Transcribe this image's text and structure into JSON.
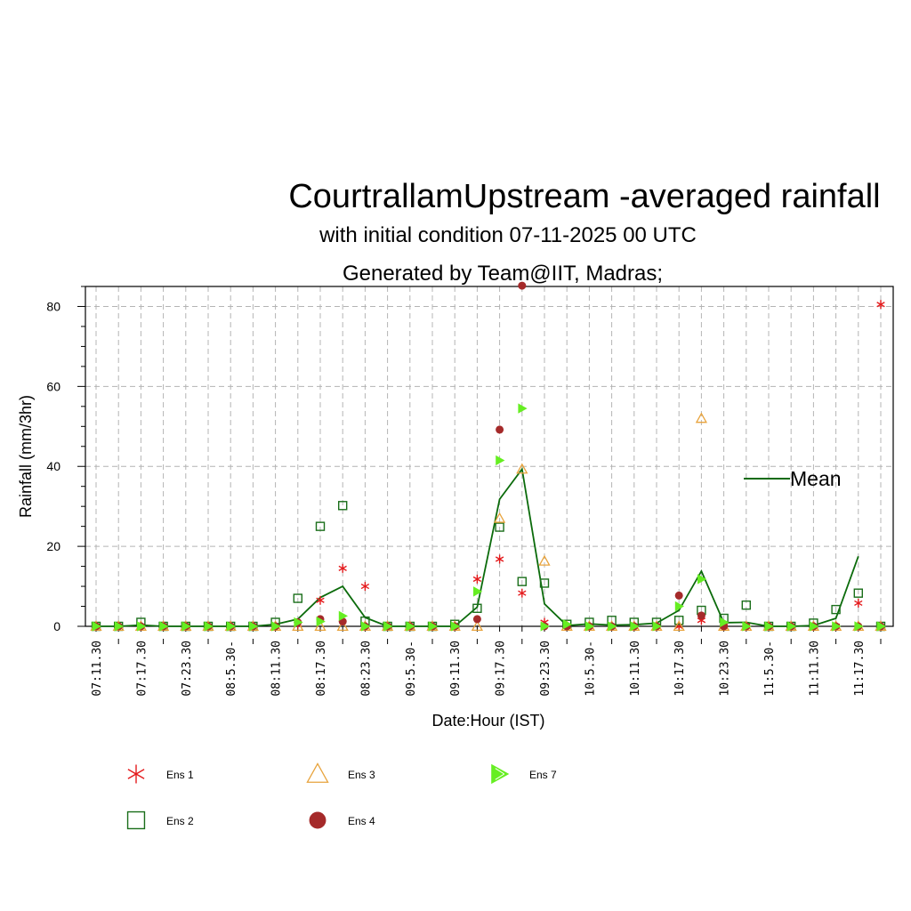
{
  "chart_data": {
    "type": "scatter",
    "title": "CourtrallamUpstream -averaged rainfall",
    "subtitle": "with initial condition 07-11-2025 00 UTC",
    "subtitle2": "Generated by Team@IIT, Madras;",
    "xlabel": "Date:Hour (IST)",
    "ylabel": "Rainfall (mm/3hr)",
    "ylim": [
      0,
      85
    ],
    "yticks": [
      0,
      20,
      40,
      60,
      80
    ],
    "grid": true,
    "tick_labels": [
      "07:11.30",
      "07:17.30",
      "07:23.30",
      "08:5.30-",
      "08:11.30",
      "08:17.30",
      "08:23.30",
      "09:5.30-",
      "09:11.30",
      "09:17.30",
      "09:23.30",
      "10:5.30-",
      "10:11.30",
      "10:17.30",
      "10:23.30",
      "11:5.30-",
      "11:11.30",
      "11:17.30"
    ],
    "x_count": 36,
    "series": [
      {
        "name": "Ens 1",
        "marker": "asterisk",
        "color": "#e41a1c",
        "values": [
          0,
          0,
          0,
          0,
          0,
          0,
          0,
          0,
          0,
          0.5,
          6.5,
          14.5,
          10,
          0,
          0,
          0,
          0,
          11.8,
          16.8,
          8.3,
          1,
          0,
          0,
          0,
          0,
          0,
          0,
          1.5,
          0,
          0,
          0,
          0,
          0,
          0,
          5.8,
          80.5
        ]
      },
      {
        "name": "Ens 2",
        "marker": "square",
        "color": "#1a6e1a",
        "values": [
          0,
          0,
          1,
          0,
          0,
          0,
          0,
          0,
          1,
          7,
          25,
          30.2,
          1.3,
          0,
          0,
          0,
          0.5,
          4.5,
          24.8,
          11.2,
          10.8,
          0.5,
          1,
          1.5,
          1,
          1,
          1.5,
          4,
          2,
          5.3,
          0,
          0,
          0.8,
          4.2,
          8.3,
          0
        ]
      },
      {
        "name": "Ens 3",
        "marker": "triangle",
        "color": "#e8a33c",
        "values": [
          0,
          0,
          0,
          0,
          0,
          0,
          0,
          0,
          0,
          0,
          0,
          0,
          0,
          0,
          0,
          0,
          0,
          0,
          27,
          39.3,
          16.3,
          0,
          0,
          0,
          0,
          0,
          0,
          52,
          0,
          0,
          0,
          0,
          0,
          0,
          0,
          0
        ]
      },
      {
        "name": "Ens 4",
        "marker": "circle",
        "color": "#a52a2a",
        "values": [
          0,
          0,
          0,
          0,
          0,
          0,
          0,
          0,
          0,
          1,
          1.8,
          1.2,
          0,
          0,
          0,
          0,
          0,
          1.8,
          49.2,
          85.2,
          0,
          0,
          0,
          0,
          0,
          0,
          7.7,
          2.7,
          0,
          0,
          0,
          0,
          0,
          0,
          0,
          0
        ]
      },
      {
        "name": "Ens 7",
        "marker": "flag",
        "color": "#66ee22",
        "values": [
          0,
          0,
          0,
          0,
          0,
          0,
          0,
          0,
          0,
          1,
          1.2,
          2.6,
          0,
          0,
          0,
          0,
          0,
          8.7,
          41.5,
          54.5,
          0,
          0.5,
          0,
          0,
          0,
          0,
          5,
          11.8,
          1,
          0,
          0,
          0,
          0,
          0,
          0,
          0
        ]
      },
      {
        "name": "Mean",
        "marker": "line",
        "color": "#0b6b0b",
        "values": [
          0,
          0,
          0.3,
          0,
          0,
          0,
          0,
          0,
          0.5,
          1.8,
          7.2,
          10,
          2.2,
          0,
          0,
          0,
          0,
          4.8,
          31.8,
          39.3,
          5.6,
          0.2,
          0.6,
          0.3,
          0.4,
          0.8,
          4,
          13.8,
          0.9,
          1,
          0,
          0,
          0.2,
          2,
          17.5,
          null
        ]
      }
    ],
    "legend": [
      {
        "name": "Ens 1",
        "marker": "asterisk",
        "color": "#e41a1c"
      },
      {
        "name": "Ens 3",
        "marker": "triangle",
        "color": "#e8a33c"
      },
      {
        "name": "Ens 7",
        "marker": "flag",
        "color": "#66ee22"
      },
      {
        "name": "Ens 2",
        "marker": "square",
        "color": "#1a6e1a"
      },
      {
        "name": "Ens 4",
        "marker": "circle",
        "color": "#a52a2a"
      }
    ],
    "mean_label": "Mean",
    "legend_placement": "bottom"
  }
}
